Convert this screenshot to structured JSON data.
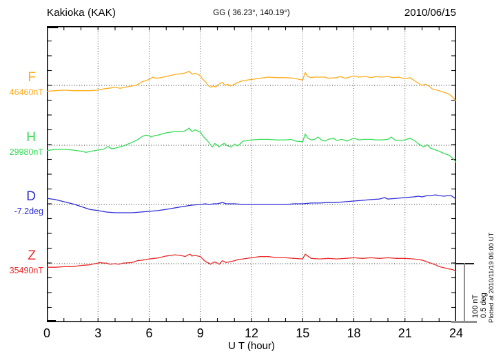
{
  "header": {
    "station": "Kakioka (KAK)",
    "coords": "GG ( 36.23°, 140.19°)",
    "date": "2010/06/15"
  },
  "axes": {
    "x_label": "U T (hour)",
    "x_min": 0,
    "x_max": 24,
    "x_tick_labels": [
      "0",
      "3",
      "6",
      "9",
      "12",
      "15",
      "18",
      "21",
      "24"
    ],
    "x_minor_step_hours": 1,
    "x_grid_step_hours": 3,
    "y_minor_tick_count": 20,
    "grid_on": true
  },
  "scale_bar": {
    "nt_label": "100 nT",
    "deg_label": "0.5 deg",
    "nT": 100,
    "deg": 0.5
  },
  "footer_note": "Plotted at 2010/11/19 06:00 UT",
  "chart_data": {
    "type": "line",
    "title": "Kakioka (KAK) geomagnetic field variations, 2010/06/15",
    "xlabel": "U T (hour)",
    "xlim": [
      0,
      24
    ],
    "grid": "dotted vertical every 3 h, dotted horizontal baseline per channel",
    "legend_position": "left margin channel labels",
    "axis_color": "#000000",
    "grid_color": "#555555",
    "series": [
      {
        "name": "F",
        "base_label": "46460nT",
        "base": 46460,
        "unit": "nT",
        "color": "#FFAC1A",
        "points": [
          [
            0,
            46450
          ],
          [
            0.5,
            46451
          ],
          [
            1,
            46452
          ],
          [
            1.5,
            46451
          ],
          [
            2,
            46451
          ],
          [
            2.5,
            46451
          ],
          [
            3,
            46452
          ],
          [
            3.3,
            46454
          ],
          [
            3.6,
            46455
          ],
          [
            4,
            46457
          ],
          [
            4.3,
            46455
          ],
          [
            4.6,
            46457
          ],
          [
            5,
            46459
          ],
          [
            5.3,
            46461
          ],
          [
            5.6,
            46466
          ],
          [
            6,
            46470
          ],
          [
            6.2,
            46474
          ],
          [
            6.4,
            46472
          ],
          [
            6.7,
            46473
          ],
          [
            7,
            46475
          ],
          [
            7.3,
            46477
          ],
          [
            7.6,
            46479
          ],
          [
            8,
            46480
          ],
          [
            8.2,
            46482
          ],
          [
            8.35,
            46484
          ],
          [
            8.5,
            46479
          ],
          [
            8.7,
            46480
          ],
          [
            8.85,
            46479
          ],
          [
            9,
            46476
          ],
          [
            9.15,
            46470
          ],
          [
            9.3,
            46466
          ],
          [
            9.45,
            46460
          ],
          [
            9.6,
            46457
          ],
          [
            9.75,
            46459
          ],
          [
            9.9,
            46457
          ],
          [
            10,
            46460
          ],
          [
            10.15,
            46463
          ],
          [
            10.3,
            46465
          ],
          [
            10.45,
            46460
          ],
          [
            10.6,
            46462
          ],
          [
            10.75,
            46459
          ],
          [
            11,
            46462
          ],
          [
            11.2,
            46465
          ],
          [
            11.5,
            46468
          ],
          [
            12,
            46470
          ],
          [
            12.5,
            46472
          ],
          [
            13,
            46474
          ],
          [
            13.5,
            46473
          ],
          [
            14,
            46473
          ],
          [
            14.5,
            46472
          ],
          [
            15,
            46469
          ],
          [
            15.15,
            46482
          ],
          [
            15.3,
            46475
          ],
          [
            15.5,
            46473
          ],
          [
            15.7,
            46474
          ],
          [
            16,
            46474
          ],
          [
            16.3,
            46474
          ],
          [
            16.5,
            46472
          ],
          [
            17,
            46473
          ],
          [
            17.2,
            46475
          ],
          [
            17.5,
            46472
          ],
          [
            18,
            46476
          ],
          [
            18.3,
            46474
          ],
          [
            18.7,
            46475
          ],
          [
            19,
            46473
          ],
          [
            19.3,
            46475
          ],
          [
            19.6,
            46474
          ],
          [
            20,
            46475
          ],
          [
            20.3,
            46473
          ],
          [
            20.6,
            46474
          ],
          [
            21,
            46471
          ],
          [
            21.3,
            46473
          ],
          [
            21.6,
            46467
          ],
          [
            22,
            46460
          ],
          [
            22.2,
            46462
          ],
          [
            22.4,
            46459
          ],
          [
            22.6,
            46454
          ],
          [
            23,
            46451
          ],
          [
            23.3,
            46448
          ],
          [
            23.6,
            46445
          ],
          [
            23.8,
            46440
          ],
          [
            24,
            46434
          ]
        ]
      },
      {
        "name": "H",
        "base_label": "29980nT",
        "base": 29980,
        "unit": "nT",
        "color": "#33DD55",
        "points": [
          [
            0,
            29971
          ],
          [
            0.5,
            29973
          ],
          [
            1,
            29973
          ],
          [
            1.5,
            29972
          ],
          [
            2,
            29970
          ],
          [
            2.3,
            29968
          ],
          [
            2.6,
            29970
          ],
          [
            3,
            29972
          ],
          [
            3.3,
            29973
          ],
          [
            3.6,
            29978
          ],
          [
            3.8,
            29974
          ],
          [
            4,
            29975
          ],
          [
            4.5,
            29979
          ],
          [
            5,
            29985
          ],
          [
            5.3,
            29989
          ],
          [
            5.6,
            29995
          ],
          [
            5.8,
            29997
          ],
          [
            6,
            29996
          ],
          [
            6.1,
            29994
          ],
          [
            6.3,
            29996
          ],
          [
            6.5,
            29997
          ],
          [
            7,
            30001
          ],
          [
            7.5,
            30003
          ],
          [
            8,
            30003
          ],
          [
            8.2,
            30006
          ],
          [
            8.35,
            30009
          ],
          [
            8.5,
            30003
          ],
          [
            8.7,
            30006
          ],
          [
            9,
            30002
          ],
          [
            9.2,
            29994
          ],
          [
            9.4,
            29988
          ],
          [
            9.6,
            29981
          ],
          [
            9.7,
            29977
          ],
          [
            9.85,
            29983
          ],
          [
            10,
            29980
          ],
          [
            10.1,
            29977
          ],
          [
            10.25,
            29981
          ],
          [
            10.4,
            29983
          ],
          [
            10.6,
            29979
          ],
          [
            10.8,
            29977
          ],
          [
            11,
            29982
          ],
          [
            11.2,
            29979
          ],
          [
            11.5,
            29987
          ],
          [
            12,
            29989
          ],
          [
            12.5,
            29990
          ],
          [
            13,
            29990
          ],
          [
            13.5,
            29989
          ],
          [
            14,
            29989
          ],
          [
            14.3,
            29990
          ],
          [
            14.6,
            29987
          ],
          [
            15,
            29986
          ],
          [
            15.15,
            29999
          ],
          [
            15.3,
            29992
          ],
          [
            15.5,
            29989
          ],
          [
            15.7,
            29990
          ],
          [
            15.9,
            29994
          ],
          [
            16.1,
            29989
          ],
          [
            16.3,
            29987
          ],
          [
            16.5,
            29990
          ],
          [
            16.8,
            29992
          ],
          [
            17,
            29988
          ],
          [
            17.3,
            29990
          ],
          [
            17.6,
            29987
          ],
          [
            18,
            29992
          ],
          [
            18.3,
            29989
          ],
          [
            18.6,
            29990
          ],
          [
            19,
            29990
          ],
          [
            19.3,
            29989
          ],
          [
            19.6,
            29989
          ],
          [
            20,
            29990
          ],
          [
            20.2,
            29994
          ],
          [
            20.4,
            29989
          ],
          [
            20.6,
            29988
          ],
          [
            21,
            29989
          ],
          [
            21.3,
            29992
          ],
          [
            21.6,
            29987
          ],
          [
            21.8,
            29982
          ],
          [
            22,
            29979
          ],
          [
            22.1,
            29977
          ],
          [
            22.3,
            29981
          ],
          [
            22.5,
            29975
          ],
          [
            22.7,
            29973
          ],
          [
            23,
            29970
          ],
          [
            23.3,
            29966
          ],
          [
            23.6,
            29963
          ],
          [
            23.8,
            29958
          ],
          [
            24,
            29951
          ]
        ]
      },
      {
        "name": "D",
        "base_label": "-7.2deg",
        "base": -7.2,
        "unit": "deg",
        "color": "#2B2BD5",
        "points": [
          [
            0,
            -7.148
          ],
          [
            0.5,
            -7.159
          ],
          [
            1,
            -7.177
          ],
          [
            1.5,
            -7.194
          ],
          [
            2,
            -7.217
          ],
          [
            2.5,
            -7.241
          ],
          [
            3,
            -7.252
          ],
          [
            3.5,
            -7.264
          ],
          [
            4,
            -7.27
          ],
          [
            4.5,
            -7.27
          ],
          [
            5,
            -7.27
          ],
          [
            5.5,
            -7.264
          ],
          [
            6,
            -7.258
          ],
          [
            6.5,
            -7.252
          ],
          [
            7,
            -7.241
          ],
          [
            7.5,
            -7.229
          ],
          [
            8,
            -7.217
          ],
          [
            8.5,
            -7.206
          ],
          [
            9,
            -7.2
          ],
          [
            9.3,
            -7.194
          ],
          [
            9.5,
            -7.2
          ],
          [
            9.8,
            -7.194
          ],
          [
            10,
            -7.194
          ],
          [
            10.3,
            -7.183
          ],
          [
            10.5,
            -7.194
          ],
          [
            11,
            -7.194
          ],
          [
            11.5,
            -7.2
          ],
          [
            12,
            -7.2
          ],
          [
            12.5,
            -7.2
          ],
          [
            13,
            -7.2
          ],
          [
            13.5,
            -7.2
          ],
          [
            14,
            -7.2
          ],
          [
            14.5,
            -7.194
          ],
          [
            15,
            -7.194
          ],
          [
            15.5,
            -7.188
          ],
          [
            16,
            -7.188
          ],
          [
            16.5,
            -7.183
          ],
          [
            17,
            -7.183
          ],
          [
            17.5,
            -7.177
          ],
          [
            18,
            -7.171
          ],
          [
            18.5,
            -7.165
          ],
          [
            19,
            -7.159
          ],
          [
            19.5,
            -7.154
          ],
          [
            19.8,
            -7.142
          ],
          [
            20,
            -7.154
          ],
          [
            20.5,
            -7.148
          ],
          [
            21,
            -7.142
          ],
          [
            21.5,
            -7.136
          ],
          [
            21.8,
            -7.13
          ],
          [
            22,
            -7.136
          ],
          [
            22.3,
            -7.125
          ],
          [
            22.5,
            -7.125
          ],
          [
            22.8,
            -7.119
          ],
          [
            23,
            -7.125
          ],
          [
            23.3,
            -7.13
          ],
          [
            23.5,
            -7.125
          ],
          [
            23.7,
            -7.125
          ],
          [
            24,
            -7.154
          ]
        ]
      },
      {
        "name": "Z",
        "base_label": "35490nT",
        "base": 35490,
        "unit": "nT",
        "color": "#E82A2A",
        "points": [
          [
            0,
            35484
          ],
          [
            0.5,
            35484
          ],
          [
            1,
            35485
          ],
          [
            1.5,
            35485
          ],
          [
            2,
            35487
          ],
          [
            2.5,
            35488
          ],
          [
            2.8,
            35490
          ],
          [
            3,
            35491
          ],
          [
            3.1,
            35492
          ],
          [
            3.3,
            35491
          ],
          [
            3.5,
            35491
          ],
          [
            3.7,
            35489
          ],
          [
            4,
            35490
          ],
          [
            4.2,
            35489
          ],
          [
            4.5,
            35491
          ],
          [
            5,
            35492
          ],
          [
            5.3,
            35495
          ],
          [
            5.6,
            35496
          ],
          [
            6,
            35498
          ],
          [
            6.3,
            35499
          ],
          [
            6.6,
            35500
          ],
          [
            7,
            35503
          ],
          [
            7.3,
            35504
          ],
          [
            7.5,
            35505
          ],
          [
            7.8,
            35504
          ],
          [
            8,
            35503
          ],
          [
            8.1,
            35502
          ],
          [
            8.3,
            35505
          ],
          [
            8.4,
            35506
          ],
          [
            8.5,
            35503
          ],
          [
            8.7,
            35504
          ],
          [
            9,
            35502
          ],
          [
            9.2,
            35496
          ],
          [
            9.4,
            35492
          ],
          [
            9.5,
            35491
          ],
          [
            9.6,
            35489
          ],
          [
            9.8,
            35493
          ],
          [
            10,
            35491
          ],
          [
            10.1,
            35489
          ],
          [
            10.3,
            35495
          ],
          [
            10.5,
            35492
          ],
          [
            10.7,
            35493
          ],
          [
            11,
            35495
          ],
          [
            11.2,
            35497
          ],
          [
            11.5,
            35498
          ],
          [
            12,
            35500
          ],
          [
            12.5,
            35502
          ],
          [
            13,
            35502
          ],
          [
            13.5,
            35500
          ],
          [
            14,
            35500
          ],
          [
            14.5,
            35499
          ],
          [
            15,
            35498
          ],
          [
            15.15,
            35506
          ],
          [
            15.3,
            35503
          ],
          [
            15.5,
            35499
          ],
          [
            16,
            35498
          ],
          [
            16.5,
            35499
          ],
          [
            17,
            35498
          ],
          [
            17.5,
            35499
          ],
          [
            18,
            35500
          ],
          [
            18.5,
            35499
          ],
          [
            19,
            35500
          ],
          [
            19.5,
            35499
          ],
          [
            20,
            35500
          ],
          [
            20.5,
            35499
          ],
          [
            21,
            35499
          ],
          [
            21.5,
            35498
          ],
          [
            21.8,
            35497
          ],
          [
            22,
            35496
          ],
          [
            22.3,
            35493
          ],
          [
            22.5,
            35491
          ],
          [
            22.8,
            35488
          ],
          [
            23,
            35485
          ],
          [
            23.3,
            35483
          ],
          [
            23.6,
            35481
          ],
          [
            23.8,
            35480
          ],
          [
            24,
            35477
          ]
        ]
      }
    ]
  }
}
